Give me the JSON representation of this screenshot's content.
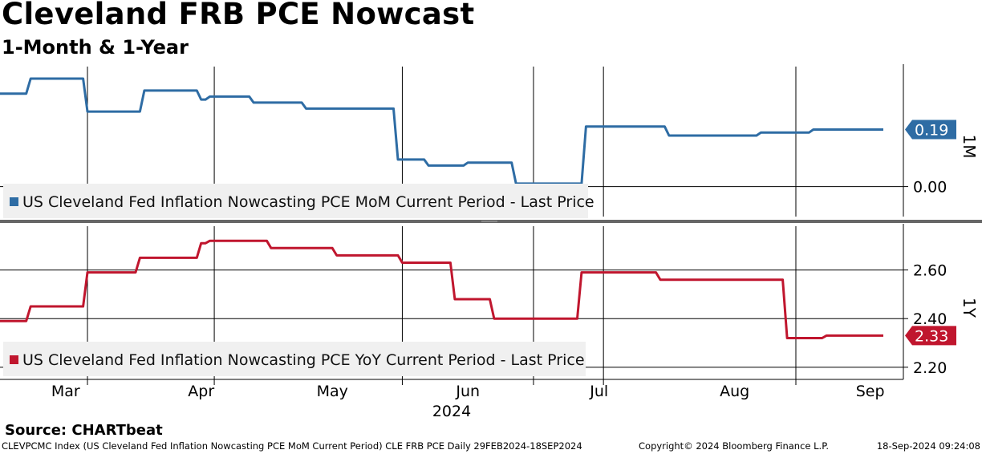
{
  "header": {
    "title": "Cleveland FRB PCE Nowcast",
    "subtitle": "1-Month & 1-Year"
  },
  "footer": {
    "source": "Source: CHARTbeat",
    "index_info": "CLEVPCMC Index (US Cleveland Fed Inflation Nowcasting PCE MoM Current Period) CLE FRB PCE  Daily 29FEB2024-18SEP2024",
    "copyright": "Copyright© 2024 Bloomberg Finance L.P.",
    "timestamp": "18-Sep-2024 09:24:08"
  },
  "colors": {
    "mom": "#2e6ca4",
    "yoy": "#c0162e",
    "legend_bg": "#f0f0f0",
    "divider": "#666666"
  },
  "chart_data": [
    {
      "type": "line",
      "axis_label": "1M",
      "legend": "US Cleveland Fed Inflation Nowcasting PCE MoM Current Period - Last Price",
      "last_value_label": "0.19",
      "y_tick_labels": [
        "0.00"
      ],
      "y_ticks": [
        0.0
      ],
      "ylim": [
        -0.1,
        0.4
      ],
      "grid": true,
      "x_start": "2024-02-29",
      "x_end": "2024-09-18",
      "points": [
        [
          "2024-02-29",
          0.31
        ],
        [
          "2024-03-06",
          0.31
        ],
        [
          "2024-03-07",
          0.36
        ],
        [
          "2024-03-19",
          0.36
        ],
        [
          "2024-03-20",
          0.25
        ],
        [
          "2024-04-01",
          0.25
        ],
        [
          "2024-04-02",
          0.32
        ],
        [
          "2024-04-14",
          0.32
        ],
        [
          "2024-04-15",
          0.29
        ],
        [
          "2024-04-16",
          0.29
        ],
        [
          "2024-04-17",
          0.3
        ],
        [
          "2024-04-26",
          0.3
        ],
        [
          "2024-04-27",
          0.28
        ],
        [
          "2024-05-08",
          0.28
        ],
        [
          "2024-05-09",
          0.26
        ],
        [
          "2024-05-29",
          0.26
        ],
        [
          "2024-05-30",
          0.09
        ],
        [
          "2024-06-05",
          0.09
        ],
        [
          "2024-06-06",
          0.07
        ],
        [
          "2024-06-14",
          0.07
        ],
        [
          "2024-06-15",
          0.08
        ],
        [
          "2024-06-25",
          0.08
        ],
        [
          "2024-06-26",
          0.01
        ],
        [
          "2024-07-11",
          0.01
        ],
        [
          "2024-07-12",
          0.2
        ],
        [
          "2024-07-30",
          0.2
        ],
        [
          "2024-07-31",
          0.17
        ],
        [
          "2024-08-20",
          0.17
        ],
        [
          "2024-08-21",
          0.18
        ],
        [
          "2024-09-01",
          0.18
        ],
        [
          "2024-09-02",
          0.19
        ],
        [
          "2024-09-18",
          0.19
        ]
      ]
    },
    {
      "type": "line",
      "axis_label": "1Y",
      "legend": "US Cleveland Fed Inflation Nowcasting PCE YoY Current Period - Last Price",
      "last_value_label": "2.33",
      "y_tick_labels": [
        "2.20",
        "2.40",
        "2.60"
      ],
      "y_ticks": [
        2.2,
        2.4,
        2.6
      ],
      "ylim": [
        2.15,
        2.78
      ],
      "grid": true,
      "x_start": "2024-02-29",
      "x_end": "2024-09-18",
      "points": [
        [
          "2024-02-29",
          2.39
        ],
        [
          "2024-03-06",
          2.39
        ],
        [
          "2024-03-07",
          2.45
        ],
        [
          "2024-03-19",
          2.45
        ],
        [
          "2024-03-20",
          2.59
        ],
        [
          "2024-03-31",
          2.59
        ],
        [
          "2024-04-01",
          2.65
        ],
        [
          "2024-04-14",
          2.65
        ],
        [
          "2024-04-15",
          2.71
        ],
        [
          "2024-04-16",
          2.71
        ],
        [
          "2024-04-17",
          2.72
        ],
        [
          "2024-04-30",
          2.72
        ],
        [
          "2024-05-01",
          2.69
        ],
        [
          "2024-05-15",
          2.69
        ],
        [
          "2024-05-16",
          2.66
        ],
        [
          "2024-05-30",
          2.66
        ],
        [
          "2024-05-31",
          2.63
        ],
        [
          "2024-06-11",
          2.63
        ],
        [
          "2024-06-12",
          2.48
        ],
        [
          "2024-06-20",
          2.48
        ],
        [
          "2024-06-21",
          2.4
        ],
        [
          "2024-07-10",
          2.4
        ],
        [
          "2024-07-11",
          2.59
        ],
        [
          "2024-07-28",
          2.59
        ],
        [
          "2024-07-29",
          2.56
        ],
        [
          "2024-08-26",
          2.56
        ],
        [
          "2024-08-27",
          2.32
        ],
        [
          "2024-09-04",
          2.32
        ],
        [
          "2024-09-05",
          2.33
        ],
        [
          "2024-09-18",
          2.33
        ]
      ]
    }
  ],
  "x_axis": {
    "month_labels": [
      "Mar",
      "Apr",
      "May",
      "Jun",
      "Jul",
      "Aug",
      "Sep"
    ],
    "month_dates": [
      "2024-03-15",
      "2024-04-15",
      "2024-05-15",
      "2024-06-15",
      "2024-07-15",
      "2024-08-15",
      "2024-09-15"
    ],
    "gridline_dates": [
      "2024-03-20",
      "2024-04-18",
      "2024-05-31",
      "2024-06-30",
      "2024-07-16",
      "2024-08-29"
    ],
    "year_label": "2024"
  }
}
